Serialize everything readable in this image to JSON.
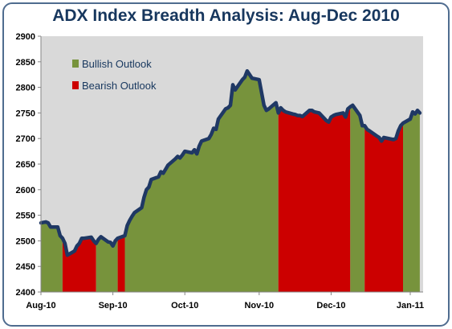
{
  "colors": {
    "bullish": "#77933c",
    "bearish": "#cc0000",
    "line": "#1f3864",
    "plot_bg": "#d9d9d9",
    "frame": "#4f6c8f",
    "title": "#17375e"
  },
  "chart_data": {
    "type": "area",
    "title": "ADX Index Breadth Analysis:  Aug-Dec 2010",
    "xlabel": "",
    "ylabel": "",
    "ylim": [
      2400,
      2900
    ],
    "yticks": [
      2400,
      2450,
      2500,
      2550,
      2600,
      2650,
      2700,
      2750,
      2800,
      2850,
      2900
    ],
    "xticks": [
      {
        "label": "Aug-10",
        "date": "2010-08-02"
      },
      {
        "label": "Sep-10",
        "date": "2010-09-01"
      },
      {
        "label": "Oct-10",
        "date": "2010-10-01"
      },
      {
        "label": "Nov-10",
        "date": "2010-11-01"
      },
      {
        "label": "Dec-10",
        "date": "2010-12-01"
      },
      {
        "label": "Jan-11",
        "date": "2011-01-03"
      }
    ],
    "grid": false,
    "legend_position": "top-left",
    "legend": [
      {
        "name": "Bullish Outlook",
        "color": "#77933c"
      },
      {
        "name": "Bearish Outlook",
        "color": "#cc0000"
      }
    ],
    "series": [
      {
        "name": "ADX Index",
        "points": [
          [
            "2010-08-02",
            2535
          ],
          [
            "2010-08-04",
            2537
          ],
          [
            "2010-08-05",
            2535
          ],
          [
            "2010-08-06",
            2527
          ],
          [
            "2010-08-09",
            2527
          ],
          [
            "2010-08-10",
            2510
          ],
          [
            "2010-08-11",
            2505
          ],
          [
            "2010-08-12",
            2495
          ],
          [
            "2010-08-13",
            2472
          ],
          [
            "2010-08-16",
            2480
          ],
          [
            "2010-08-17",
            2490
          ],
          [
            "2010-08-18",
            2495
          ],
          [
            "2010-08-19",
            2505
          ],
          [
            "2010-08-20",
            2505
          ],
          [
            "2010-08-23",
            2507
          ],
          [
            "2010-08-24",
            2500
          ],
          [
            "2010-08-25",
            2495
          ],
          [
            "2010-08-26",
            2503
          ],
          [
            "2010-08-27",
            2508
          ],
          [
            "2010-08-30",
            2498
          ],
          [
            "2010-08-31",
            2497
          ],
          [
            "2010-09-01",
            2490
          ],
          [
            "2010-09-02",
            2500
          ],
          [
            "2010-09-03",
            2505
          ],
          [
            "2010-09-06",
            2510
          ],
          [
            "2010-09-07",
            2530
          ],
          [
            "2010-09-08",
            2540
          ],
          [
            "2010-09-09",
            2548
          ],
          [
            "2010-09-10",
            2555
          ],
          [
            "2010-09-13",
            2565
          ],
          [
            "2010-09-14",
            2585
          ],
          [
            "2010-09-15",
            2600
          ],
          [
            "2010-09-16",
            2605
          ],
          [
            "2010-09-17",
            2620
          ],
          [
            "2010-09-20",
            2625
          ],
          [
            "2010-09-21",
            2635
          ],
          [
            "2010-09-22",
            2632
          ],
          [
            "2010-09-23",
            2640
          ],
          [
            "2010-09-24",
            2648
          ],
          [
            "2010-09-27",
            2660
          ],
          [
            "2010-09-28",
            2665
          ],
          [
            "2010-09-29",
            2662
          ],
          [
            "2010-09-30",
            2668
          ],
          [
            "2010-10-01",
            2675
          ],
          [
            "2010-10-04",
            2672
          ],
          [
            "2010-10-05",
            2678
          ],
          [
            "2010-10-06",
            2670
          ],
          [
            "2010-10-07",
            2685
          ],
          [
            "2010-10-08",
            2695
          ],
          [
            "2010-10-11",
            2700
          ],
          [
            "2010-10-12",
            2708
          ],
          [
            "2010-10-13",
            2720
          ],
          [
            "2010-10-14",
            2718
          ],
          [
            "2010-10-15",
            2738
          ],
          [
            "2010-10-18",
            2758
          ],
          [
            "2010-10-19",
            2760
          ],
          [
            "2010-10-20",
            2765
          ],
          [
            "2010-10-21",
            2805
          ],
          [
            "2010-10-22",
            2795
          ],
          [
            "2010-10-25",
            2815
          ],
          [
            "2010-10-26",
            2820
          ],
          [
            "2010-10-27",
            2832
          ],
          [
            "2010-10-28",
            2825
          ],
          [
            "2010-10-29",
            2818
          ],
          [
            "2010-11-01",
            2815
          ],
          [
            "2010-11-02",
            2790
          ],
          [
            "2010-11-03",
            2765
          ],
          [
            "2010-11-04",
            2755
          ],
          [
            "2010-11-05",
            2758
          ],
          [
            "2010-11-08",
            2770
          ],
          [
            "2010-11-09",
            2750
          ],
          [
            "2010-11-10",
            2760
          ],
          [
            "2010-11-11",
            2755
          ],
          [
            "2010-11-12",
            2752
          ],
          [
            "2010-11-15",
            2748
          ],
          [
            "2010-11-16",
            2747
          ],
          [
            "2010-11-17",
            2745
          ],
          [
            "2010-11-18",
            2745
          ],
          [
            "2010-11-19",
            2743
          ],
          [
            "2010-11-22",
            2755
          ],
          [
            "2010-11-23",
            2755
          ],
          [
            "2010-11-24",
            2752
          ],
          [
            "2010-11-26",
            2750
          ],
          [
            "2010-11-29",
            2735
          ],
          [
            "2010-11-30",
            2732
          ],
          [
            "2010-12-01",
            2742
          ],
          [
            "2010-12-02",
            2745
          ],
          [
            "2010-12-03",
            2747
          ],
          [
            "2010-12-06",
            2750
          ],
          [
            "2010-12-07",
            2742
          ],
          [
            "2010-12-08",
            2758
          ],
          [
            "2010-12-09",
            2762
          ],
          [
            "2010-12-10",
            2765
          ],
          [
            "2010-12-13",
            2745
          ],
          [
            "2010-12-14",
            2725
          ],
          [
            "2010-12-15",
            2725
          ],
          [
            "2010-12-16",
            2718
          ],
          [
            "2010-12-17",
            2715
          ],
          [
            "2010-12-20",
            2705
          ],
          [
            "2010-12-21",
            2702
          ],
          [
            "2010-12-22",
            2695
          ],
          [
            "2010-12-23",
            2702
          ],
          [
            "2010-12-27",
            2698
          ],
          [
            "2010-12-28",
            2700
          ],
          [
            "2010-12-29",
            2715
          ],
          [
            "2010-12-30",
            2725
          ],
          [
            "2010-12-31",
            2730
          ],
          [
            "2011-01-03",
            2738
          ],
          [
            "2011-01-04",
            2752
          ],
          [
            "2011-01-05",
            2748
          ],
          [
            "2011-01-06",
            2755
          ],
          [
            "2011-01-07",
            2750
          ]
        ]
      }
    ],
    "regimes": [
      {
        "outlook": "Bullish",
        "start": "2010-08-02",
        "end": "2010-08-11"
      },
      {
        "outlook": "Bearish",
        "start": "2010-08-11",
        "end": "2010-08-25"
      },
      {
        "outlook": "Bullish",
        "start": "2010-08-25",
        "end": "2010-09-03"
      },
      {
        "outlook": "Bearish",
        "start": "2010-09-03",
        "end": "2010-09-06"
      },
      {
        "outlook": "Bullish",
        "start": "2010-09-06",
        "end": "2010-11-09"
      },
      {
        "outlook": "Bearish",
        "start": "2010-11-09",
        "end": "2010-12-09"
      },
      {
        "outlook": "Bullish",
        "start": "2010-12-09",
        "end": "2010-12-15"
      },
      {
        "outlook": "Bearish",
        "start": "2010-12-15",
        "end": "2010-12-31"
      },
      {
        "outlook": "Bullish",
        "start": "2010-12-31",
        "end": "2011-01-07"
      }
    ]
  }
}
